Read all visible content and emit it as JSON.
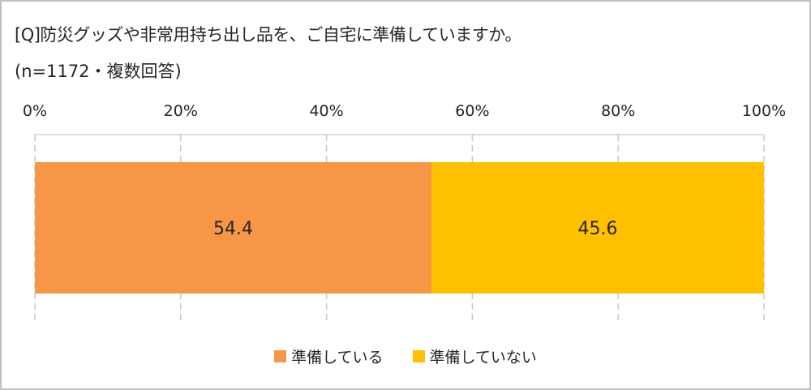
{
  "chart_data": {
    "type": "bar",
    "orientation": "horizontal-stacked-100",
    "title": "[Q]防災グッズや非常用持ち出し品を、ご自宅に準備していますか。",
    "subtitle": "(n=1172・複数回答)",
    "xlim": [
      0,
      100
    ],
    "ticks": [
      "0%",
      "20%",
      "40%",
      "60%",
      "80%",
      "100%"
    ],
    "tick_values": [
      0,
      20,
      40,
      60,
      80,
      100
    ],
    "grid": true,
    "legend_position": "bottom",
    "series": [
      {
        "name": "準備している",
        "value": 54.4,
        "label": "54.4",
        "color": "#F79646"
      },
      {
        "name": "準備していない",
        "value": 45.6,
        "label": "45.6",
        "color": "#FFC000"
      }
    ]
  }
}
